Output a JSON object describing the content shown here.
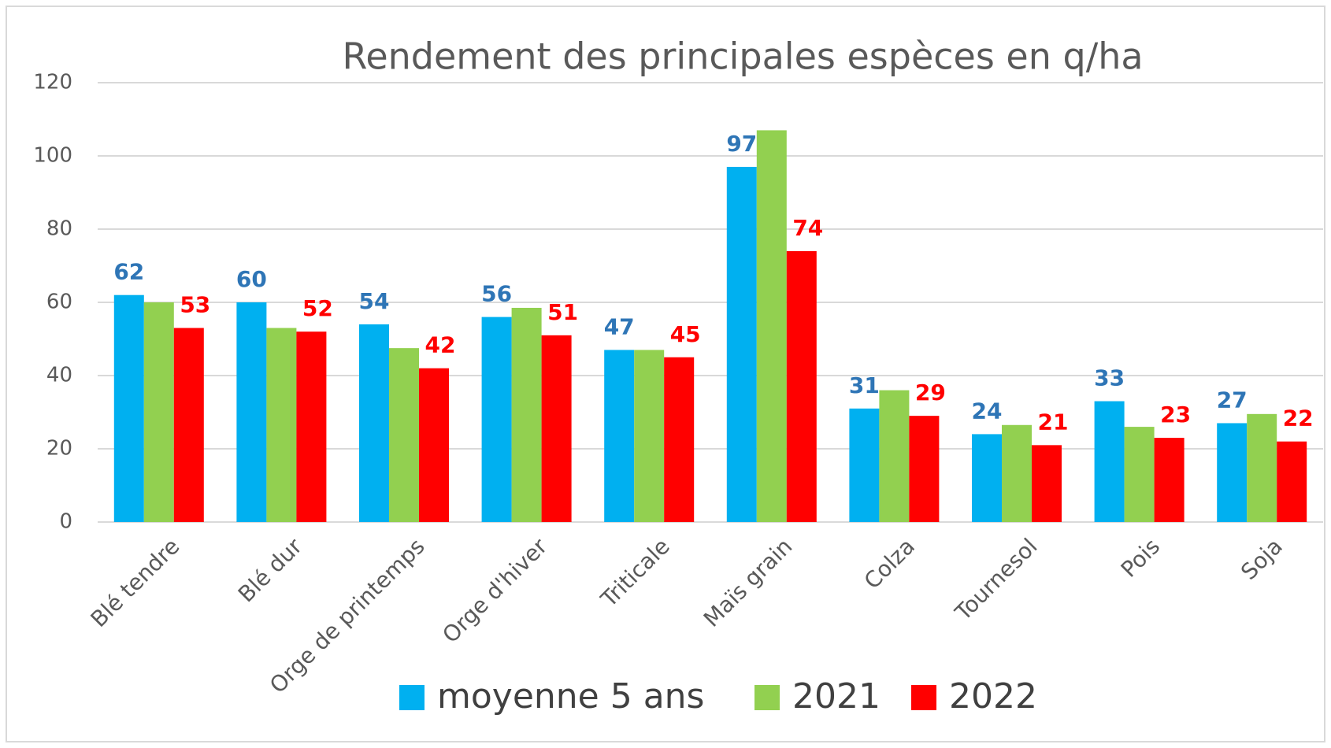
{
  "chart_data": {
    "type": "bar",
    "title": "Rendement  des principales espèces en q/ha",
    "categories": [
      "Blé tendre",
      "Blé dur",
      "Orge de printemps",
      "Orge  d'hiver",
      "Triticale",
      "Maïs grain",
      "Colza",
      "Tournesol",
      "Pois",
      "Soja"
    ],
    "series": [
      {
        "name": "moyenne 5 ans",
        "color": "#00b0f0",
        "show_labels": true,
        "label_color": "#2e75b6",
        "values": [
          62,
          60,
          54,
          56,
          47,
          97,
          31,
          24,
          33,
          27
        ]
      },
      {
        "name": "2021",
        "color": "#92d050",
        "show_labels": false,
        "values": [
          60,
          53,
          47.5,
          58.5,
          47,
          107,
          36,
          26.5,
          26,
          29.5
        ]
      },
      {
        "name": "2022",
        "color": "#ff0000",
        "show_labels": true,
        "label_color": "#ff0000",
        "values": [
          53,
          52,
          42,
          51,
          45,
          74,
          29,
          21,
          23,
          22
        ]
      }
    ],
    "ylim": [
      0,
      120
    ],
    "yticks": [
      0,
      20,
      40,
      60,
      80,
      100,
      120
    ],
    "grid": true,
    "legend": "bottom"
  }
}
